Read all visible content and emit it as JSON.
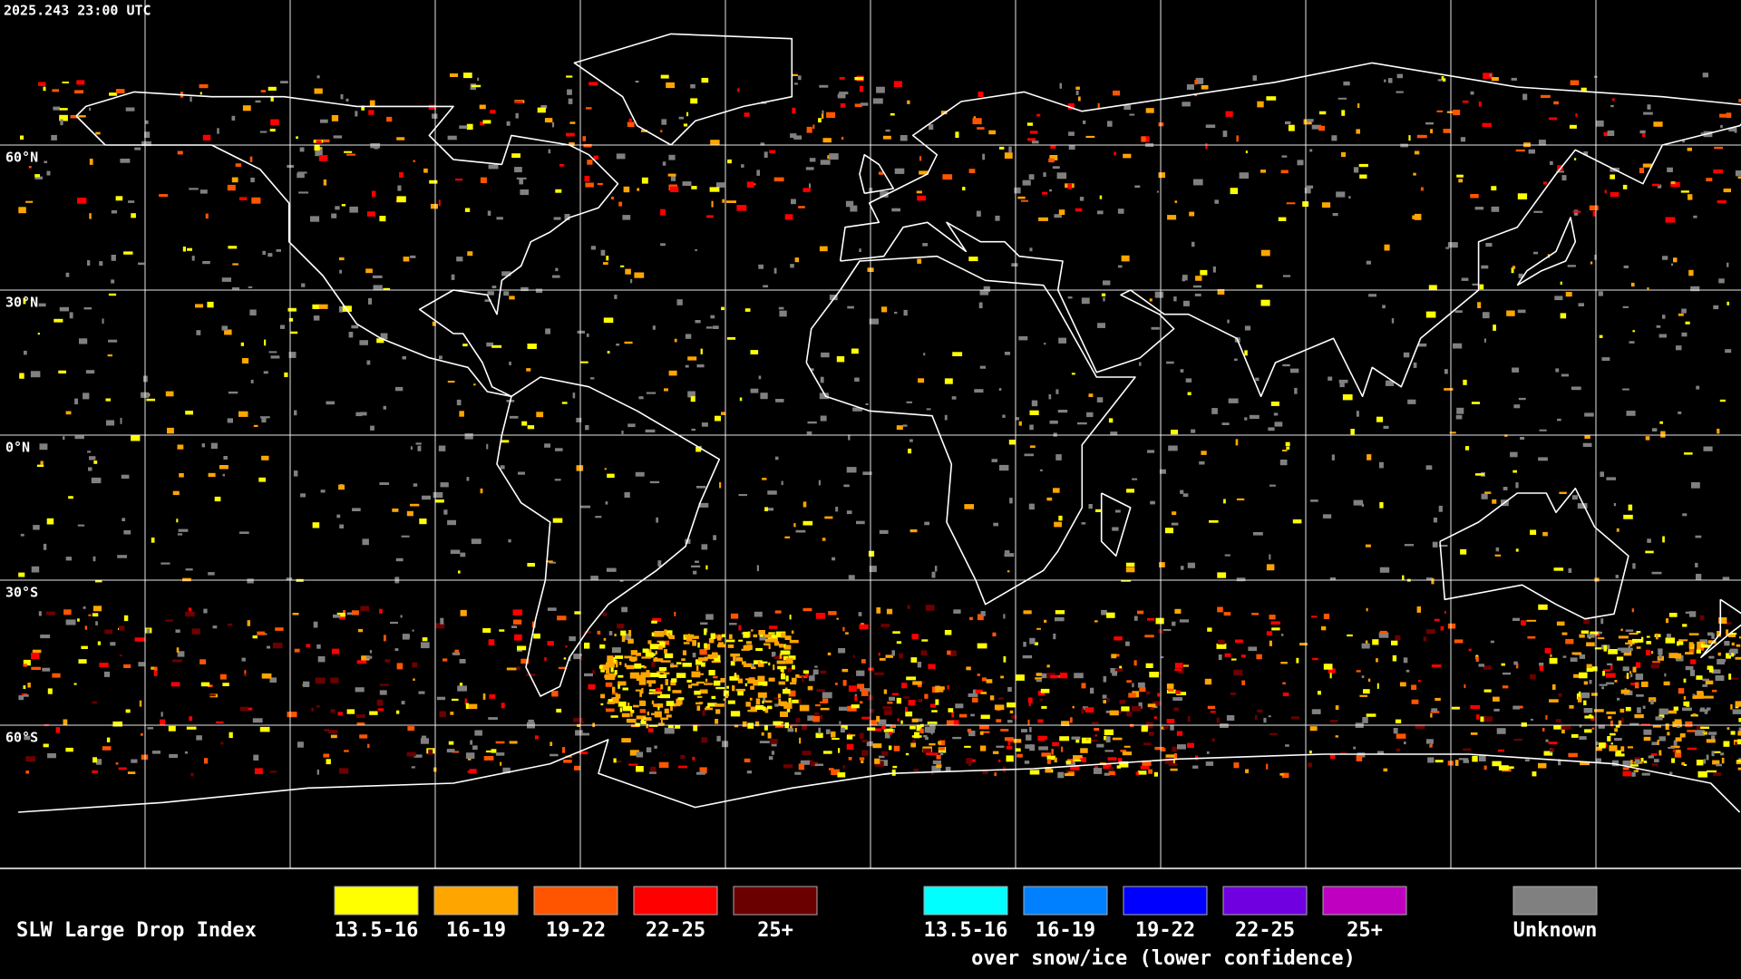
{
  "header": {
    "timestamp": "2025.243 23:00 UTC"
  },
  "map": {
    "latitude_labels": [
      "60°N",
      "30°N",
      "0°N",
      "30°S",
      "60°S"
    ]
  },
  "legend": {
    "title": "SLW Large Drop Index",
    "items": [
      {
        "label": "13.5-16",
        "color": "#ffff00"
      },
      {
        "label": "16-19",
        "color": "#ffa500"
      },
      {
        "label": "19-22",
        "color": "#ff5500"
      },
      {
        "label": "22-25",
        "color": "#ff0000"
      },
      {
        "label": "25+",
        "color": "#6b0000"
      }
    ],
    "snow_items": [
      {
        "label": "13.5-16",
        "color": "#00ffff"
      },
      {
        "label": "16-19",
        "color": "#0080ff"
      },
      {
        "label": "19-22",
        "color": "#0000ff"
      },
      {
        "label": "22-25",
        "color": "#7000e0"
      },
      {
        "label": "25+",
        "color": "#c000c0"
      }
    ],
    "snow_caption": "over snow/ice (lower confidence)",
    "unknown": {
      "label": "Unknown",
      "color": "#808080"
    }
  }
}
